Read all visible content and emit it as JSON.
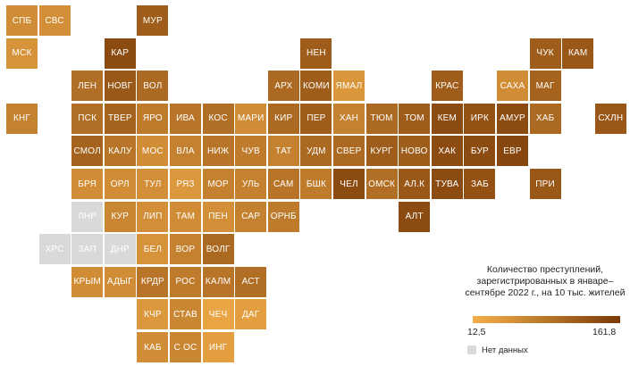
{
  "legend": {
    "title": "Количество преступлений, зарегистрированных в январе–сентябре 2022 г., на 10 тыс. жителей",
    "min_label": "12,5",
    "max_label": "161,8",
    "no_data_label": "Нет данных",
    "color_low": "#f5b04a",
    "color_high": "#7a3a07",
    "no_data_color": "#d9d9d9"
  },
  "chart_data": {
    "type": "tile-grid-map",
    "title": "Количество преступлений, зарегистрированных в январе–сентябре 2022 г., на 10 тыс. жителей",
    "scale_min": 12.5,
    "scale_max": 161.8,
    "regions": [
      {
        "label": "СПБ",
        "level": 0.3
      },
      {
        "label": "СВС",
        "level": 0.28
      },
      {
        "label": "МУР",
        "level": 0.7
      },
      {
        "label": "МСК",
        "level": 0.25
      },
      {
        "label": "КАР",
        "level": 0.85
      },
      {
        "label": "НЕН",
        "level": 0.7
      },
      {
        "label": "ЧУК",
        "level": 0.7
      },
      {
        "label": "КАМ",
        "level": 0.75
      },
      {
        "label": "ЛЕН",
        "level": 0.55
      },
      {
        "label": "НОВГ",
        "level": 0.75
      },
      {
        "label": "ВОЛ",
        "level": 0.6
      },
      {
        "label": "АРХ",
        "level": 0.6
      },
      {
        "label": "КОМИ",
        "level": 0.7
      },
      {
        "label": "ЯМАЛ",
        "level": 0.22
      },
      {
        "label": "КРАС",
        "level": 0.7
      },
      {
        "label": "САХА",
        "level": 0.3
      },
      {
        "label": "МАГ",
        "level": 0.65
      },
      {
        "label": "КНГ",
        "level": 0.4
      },
      {
        "label": "ПСК",
        "level": 0.55
      },
      {
        "label": "ТВЕР",
        "level": 0.65
      },
      {
        "label": "ЯРО",
        "level": 0.45
      },
      {
        "label": "ИВА",
        "level": 0.5
      },
      {
        "label": "КОС",
        "level": 0.55
      },
      {
        "label": "МАРИ",
        "level": 0.3
      },
      {
        "label": "КИР",
        "level": 0.6
      },
      {
        "label": "ПЕР",
        "level": 0.7
      },
      {
        "label": "ХАН",
        "level": 0.4
      },
      {
        "label": "ТЮМ",
        "level": 0.6
      },
      {
        "label": "ТОМ",
        "level": 0.7
      },
      {
        "label": "КЕМ",
        "level": 0.85
      },
      {
        "label": "ИРК",
        "level": 0.8
      },
      {
        "label": "АМУР",
        "level": 0.85
      },
      {
        "label": "ХАБ",
        "level": 0.6
      },
      {
        "label": "СХЛН",
        "level": 0.75
      },
      {
        "label": "СМОЛ",
        "level": 0.65
      },
      {
        "label": "КАЛУ",
        "level": 0.5
      },
      {
        "label": "МОС",
        "level": 0.3
      },
      {
        "label": "ВЛА",
        "level": 0.4
      },
      {
        "label": "НИЖ",
        "level": 0.5
      },
      {
        "label": "ЧУВ",
        "level": 0.45
      },
      {
        "label": "ТАТ",
        "level": 0.4
      },
      {
        "label": "УДМ",
        "level": 0.6
      },
      {
        "label": "СВЕР",
        "level": 0.6
      },
      {
        "label": "КУРГ",
        "level": 0.7
      },
      {
        "label": "НОВО",
        "level": 0.7
      },
      {
        "label": "ХАК",
        "level": 0.85
      },
      {
        "label": "БУР",
        "level": 0.85
      },
      {
        "label": "ЕВР",
        "level": 0.9
      },
      {
        "label": "БРЯ",
        "level": 0.3
      },
      {
        "label": "ОРЛ",
        "level": 0.3
      },
      {
        "label": "ТУЛ",
        "level": 0.28
      },
      {
        "label": "РЯЗ",
        "level": 0.2
      },
      {
        "label": "МОР",
        "level": 0.4
      },
      {
        "label": "УЛЬ",
        "level": 0.4
      },
      {
        "label": "САМ",
        "level": 0.5
      },
      {
        "label": "БШК",
        "level": 0.45
      },
      {
        "label": "ЧЕЛ",
        "level": 0.85
      },
      {
        "label": "ОМСК",
        "level": 0.55
      },
      {
        "label": "АЛ.К",
        "level": 0.75
      },
      {
        "label": "ТУВА",
        "level": 0.85
      },
      {
        "label": "ЗАБ",
        "level": 0.8
      },
      {
        "label": "ПРИ",
        "level": 0.75
      },
      {
        "label": "ЛНР",
        "level": null
      },
      {
        "label": "КУР",
        "level": 0.35
      },
      {
        "label": "ЛИП",
        "level": 0.28
      },
      {
        "label": "ТАМ",
        "level": 0.3
      },
      {
        "label": "ПЕН",
        "level": 0.28
      },
      {
        "label": "САР",
        "level": 0.4
      },
      {
        "label": "ОРНБ",
        "level": 0.45
      },
      {
        "label": "АЛТ",
        "level": 0.85
      },
      {
        "label": "ХРС",
        "level": null
      },
      {
        "label": "ЗАП",
        "level": null
      },
      {
        "label": "ДНР",
        "level": null
      },
      {
        "label": "БЕЛ",
        "level": 0.25
      },
      {
        "label": "ВОР",
        "level": 0.4
      },
      {
        "label": "ВОЛГ",
        "level": 0.6
      },
      {
        "label": "КРЫМ",
        "level": 0.3
      },
      {
        "label": "АДЫГ",
        "level": 0.3
      },
      {
        "label": "КРДР",
        "level": 0.5
      },
      {
        "label": "РОС",
        "level": 0.45
      },
      {
        "label": "КАЛМ",
        "level": 0.5
      },
      {
        "label": "АСТ",
        "level": 0.55
      },
      {
        "label": "КЧР",
        "level": 0.2
      },
      {
        "label": "СТАВ",
        "level": 0.35
      },
      {
        "label": "ЧЕЧ",
        "level": 0.1
      },
      {
        "label": "ДАГ",
        "level": 0.15
      },
      {
        "label": "КАБ",
        "level": 0.3
      },
      {
        "label": "С ОС",
        "level": 0.35
      },
      {
        "label": "ИНГ",
        "level": 0.15
      }
    ]
  }
}
